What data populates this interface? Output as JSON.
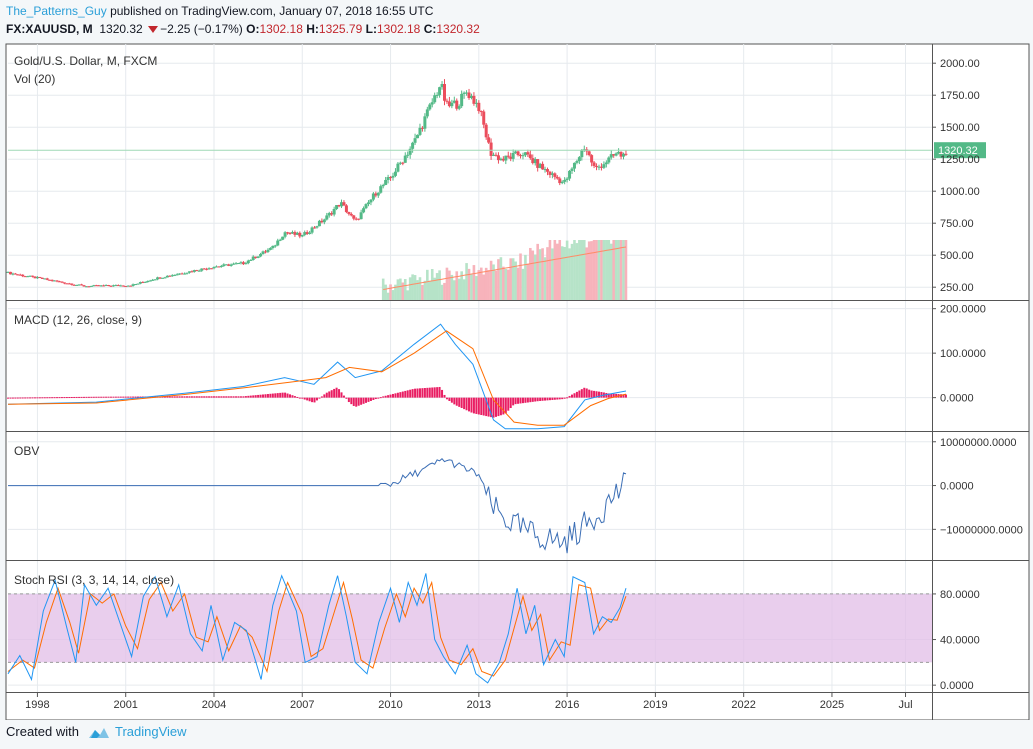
{
  "header": {
    "author": "The_Patterns_Guy",
    "published": "published on TradingView.com, January 07, 2018 16:55 UTC",
    "symbol": "FX:XAUUSD, M",
    "last": "1320.32",
    "change": "−2.25 (−0.17%)",
    "o_label": "O:",
    "o_value": "1302.18",
    "h_label": "H:",
    "h_value": "1325.79",
    "l_label": "L:",
    "l_value": "1302.18",
    "c_label": "C:",
    "c_value": "1320.32"
  },
  "footer": {
    "created_with": "Created with",
    "brand": "TradingView"
  },
  "colors": {
    "up": "#53b987",
    "down": "#eb4d5c",
    "macd": "#2196f3",
    "signal": "#ff6d00",
    "hist": "#e91e63",
    "obv": "#3b6eb5",
    "k": "#2196f3",
    "d": "#ff6d00",
    "band": "#e1bee7"
  },
  "chart_data": [
    {
      "pane": "price",
      "type": "candlestick",
      "title": "Gold/U.S. Dollar, M, FXCM",
      "subtitle": "Vol (20)",
      "yticks": [
        "2000.00",
        "1750.00",
        "1500.00",
        "1250.00",
        "1000.00",
        "750.00",
        "500.00",
        "250.00"
      ],
      "ytick_values": [
        2000,
        1750,
        1500,
        1250,
        1000,
        750,
        500,
        250
      ],
      "ylim": [
        150,
        2150
      ],
      "last_price": 1320.32,
      "last_label": "1320.32",
      "xticks": [
        "1998",
        "2001",
        "2004",
        "2007",
        "2010",
        "2013",
        "2016",
        "2019",
        "2022",
        "2025",
        "Jul"
      ],
      "xtick_years": [
        1998,
        2001,
        2004,
        2007,
        2010,
        2013,
        2016,
        2019,
        2022,
        2025,
        2027.5
      ],
      "xlim": [
        1997.0,
        2028.4
      ],
      "anchors": [
        [
          1997.0,
          362
        ],
        [
          1999.6,
          258
        ],
        [
          2001.2,
          265
        ],
        [
          2002.0,
          318
        ],
        [
          2003.0,
          365
        ],
        [
          2004.0,
          410
        ],
        [
          2005.0,
          438
        ],
        [
          2006.0,
          560
        ],
        [
          2006.4,
          680
        ],
        [
          2007.0,
          650
        ],
        [
          2007.8,
          790
        ],
        [
          2008.3,
          910
        ],
        [
          2008.8,
          760
        ],
        [
          2009.5,
          990
        ],
        [
          2010.0,
          1105
        ],
        [
          2010.8,
          1380
        ],
        [
          2011.7,
          1840
        ],
        [
          2011.9,
          1660
        ],
        [
          2012.3,
          1690
        ],
        [
          2012.6,
          1780
        ],
        [
          2013.0,
          1660
        ],
        [
          2013.4,
          1300
        ],
        [
          2013.8,
          1245
        ],
        [
          2014.5,
          1300
        ],
        [
          2015.0,
          1205
        ],
        [
          2015.9,
          1063
        ],
        [
          2016.6,
          1352
        ],
        [
          2016.95,
          1170
        ],
        [
          2017.7,
          1295
        ],
        [
          2017.9,
          1275
        ],
        [
          2018.0,
          1320
        ]
      ],
      "volume_start": 2009.7,
      "volume_max": 40000000
    },
    {
      "pane": "macd",
      "type": "line",
      "title": "MACD (12, 26, close, 9)",
      "yticks": [
        "200.0000",
        "100.0000",
        "0.0000"
      ],
      "ytick_values": [
        200,
        100,
        0
      ],
      "ylim": [
        -75,
        215
      ],
      "macd": [
        [
          1997.0,
          -15
        ],
        [
          2000.0,
          -10
        ],
        [
          2003.0,
          10
        ],
        [
          2005.0,
          25
        ],
        [
          2006.4,
          45
        ],
        [
          2007.4,
          30
        ],
        [
          2008.2,
          80
        ],
        [
          2008.8,
          45
        ],
        [
          2009.7,
          60
        ],
        [
          2010.8,
          120
        ],
        [
          2011.7,
          165
        ],
        [
          2012.2,
          120
        ],
        [
          2012.8,
          75
        ],
        [
          2013.5,
          -50
        ],
        [
          2013.9,
          -70
        ],
        [
          2015.0,
          -70
        ],
        [
          2015.9,
          -65
        ],
        [
          2016.6,
          -5
        ],
        [
          2017.2,
          5
        ],
        [
          2018.0,
          15
        ]
      ],
      "signal": [
        [
          1997.0,
          -15
        ],
        [
          2000.0,
          -12
        ],
        [
          2003.0,
          7
        ],
        [
          2005.0,
          22
        ],
        [
          2006.6,
          35
        ],
        [
          2007.8,
          45
        ],
        [
          2008.6,
          68
        ],
        [
          2009.7,
          58
        ],
        [
          2010.8,
          100
        ],
        [
          2011.9,
          150
        ],
        [
          2012.8,
          110
        ],
        [
          2013.5,
          -5
        ],
        [
          2014.2,
          -55
        ],
        [
          2015.0,
          -62
        ],
        [
          2015.9,
          -62
        ],
        [
          2016.8,
          -18
        ],
        [
          2017.4,
          -2
        ],
        [
          2018.0,
          8
        ]
      ]
    },
    {
      "pane": "obv",
      "type": "line",
      "title": "OBV",
      "yticks": [
        "10000000.0000",
        "0.0000",
        "−10000000.0000"
      ],
      "ytick_values": [
        10000000,
        0,
        -10000000
      ],
      "ylim": [
        -17000000,
        12000000
      ],
      "obv": [
        [
          1997.0,
          0
        ],
        [
          2009.6,
          0
        ],
        [
          2010.0,
          300000
        ],
        [
          2010.5,
          1800000
        ],
        [
          2011.2,
          3800000
        ],
        [
          2011.8,
          6000000
        ],
        [
          2012.0,
          5500000
        ],
        [
          2012.6,
          3600000
        ],
        [
          2013.0,
          2500000
        ],
        [
          2013.4,
          -4500000
        ],
        [
          2013.8,
          -7200000
        ],
        [
          2014.4,
          -9800000
        ],
        [
          2015.0,
          -11500000
        ],
        [
          2015.9,
          -13000000
        ],
        [
          2016.6,
          -9000000
        ],
        [
          2017.2,
          -5500000
        ],
        [
          2017.6,
          -2000000
        ],
        [
          2018.0,
          100000
        ]
      ]
    },
    {
      "pane": "stochrsi",
      "type": "line",
      "title": "Stoch RSI (3, 3, 14, 14, close)",
      "yticks": [
        "80.0000",
        "40.0000",
        "0.0000"
      ],
      "ytick_values": [
        80,
        40,
        0
      ],
      "ylim": [
        -6,
        108
      ],
      "band": [
        20,
        80
      ],
      "k": [
        [
          1997.0,
          10
        ],
        [
          1997.4,
          26
        ],
        [
          1997.8,
          5
        ],
        [
          1998.2,
          65
        ],
        [
          1998.6,
          92
        ],
        [
          1999.0,
          50
        ],
        [
          1999.3,
          20
        ],
        [
          1999.6,
          88
        ],
        [
          2000.0,
          70
        ],
        [
          2000.4,
          85
        ],
        [
          2000.8,
          55
        ],
        [
          2001.2,
          25
        ],
        [
          2001.6,
          78
        ],
        [
          2002.0,
          95
        ],
        [
          2002.4,
          60
        ],
        [
          2002.8,
          88
        ],
        [
          2003.2,
          45
        ],
        [
          2003.6,
          30
        ],
        [
          2003.9,
          70
        ],
        [
          2004.3,
          22
        ],
        [
          2004.7,
          55
        ],
        [
          2005.1,
          48
        ],
        [
          2005.6,
          5
        ],
        [
          2006.0,
          70
        ],
        [
          2006.3,
          96
        ],
        [
          2006.8,
          65
        ],
        [
          2007.1,
          20
        ],
        [
          2007.5,
          25
        ],
        [
          2007.9,
          70
        ],
        [
          2008.2,
          96
        ],
        [
          2008.5,
          60
        ],
        [
          2008.8,
          20
        ],
        [
          2009.2,
          10
        ],
        [
          2009.6,
          55
        ],
        [
          2010.0,
          85
        ],
        [
          2010.3,
          55
        ],
        [
          2010.6,
          90
        ],
        [
          2010.9,
          70
        ],
        [
          2011.2,
          98
        ],
        [
          2011.5,
          40
        ],
        [
          2011.8,
          25
        ],
        [
          2012.2,
          10
        ],
        [
          2012.6,
          35
        ],
        [
          2012.9,
          10
        ],
        [
          2013.3,
          2
        ],
        [
          2013.7,
          20
        ],
        [
          2014.0,
          45
        ],
        [
          2014.3,
          85
        ],
        [
          2014.6,
          45
        ],
        [
          2014.9,
          70
        ],
        [
          2015.2,
          18
        ],
        [
          2015.6,
          40
        ],
        [
          2015.9,
          25
        ],
        [
          2016.2,
          95
        ],
        [
          2016.6,
          90
        ],
        [
          2016.9,
          45
        ],
        [
          2017.2,
          60
        ],
        [
          2017.5,
          55
        ],
        [
          2017.8,
          68
        ],
        [
          2018.0,
          85
        ]
      ],
      "d": [
        [
          1997.0,
          12
        ],
        [
          1997.5,
          22
        ],
        [
          1997.9,
          15
        ],
        [
          1998.3,
          55
        ],
        [
          1998.7,
          85
        ],
        [
          1999.1,
          55
        ],
        [
          1999.4,
          28
        ],
        [
          1999.8,
          80
        ],
        [
          2000.2,
          72
        ],
        [
          2000.6,
          80
        ],
        [
          2001.0,
          52
        ],
        [
          2001.4,
          32
        ],
        [
          2001.8,
          75
        ],
        [
          2002.2,
          90
        ],
        [
          2002.6,
          65
        ],
        [
          2003.0,
          80
        ],
        [
          2003.4,
          42
        ],
        [
          2003.8,
          38
        ],
        [
          2004.1,
          60
        ],
        [
          2004.5,
          30
        ],
        [
          2004.9,
          52
        ],
        [
          2005.3,
          42
        ],
        [
          2005.8,
          12
        ],
        [
          2006.2,
          65
        ],
        [
          2006.5,
          90
        ],
        [
          2007.0,
          62
        ],
        [
          2007.3,
          25
        ],
        [
          2007.7,
          32
        ],
        [
          2008.1,
          65
        ],
        [
          2008.4,
          90
        ],
        [
          2008.7,
          58
        ],
        [
          2009.0,
          22
        ],
        [
          2009.4,
          15
        ],
        [
          2009.8,
          50
        ],
        [
          2010.2,
          80
        ],
        [
          2010.5,
          60
        ],
        [
          2010.8,
          85
        ],
        [
          2011.1,
          72
        ],
        [
          2011.4,
          90
        ],
        [
          2011.7,
          42
        ],
        [
          2012.0,
          22
        ],
        [
          2012.4,
          18
        ],
        [
          2012.8,
          32
        ],
        [
          2013.1,
          12
        ],
        [
          2013.5,
          8
        ],
        [
          2013.9,
          22
        ],
        [
          2014.2,
          50
        ],
        [
          2014.5,
          78
        ],
        [
          2014.8,
          48
        ],
        [
          2015.1,
          62
        ],
        [
          2015.4,
          22
        ],
        [
          2015.8,
          38
        ],
        [
          2016.1,
          35
        ],
        [
          2016.4,
          88
        ],
        [
          2016.8,
          85
        ],
        [
          2017.1,
          48
        ],
        [
          2017.4,
          58
        ],
        [
          2017.7,
          57
        ],
        [
          2018.0,
          78
        ]
      ]
    }
  ]
}
